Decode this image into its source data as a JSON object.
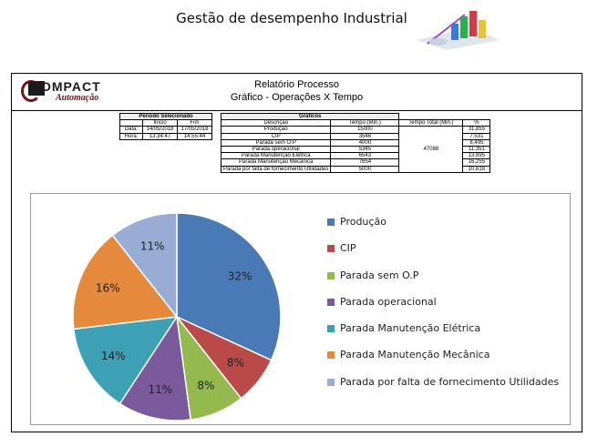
{
  "slide_title": "Gestão de desempenho Industrial",
  "logo": {
    "word": "OMPACT",
    "sub": "Automação"
  },
  "report": {
    "title": "Relatório Processo",
    "subtitle": "Gráfico - Operações X Tempo"
  },
  "period_table": {
    "header": "Período Selecionado",
    "cols": [
      "",
      "Início",
      "Fim"
    ],
    "rows": [
      [
        "Data:",
        "14/05/2018",
        "17/05/2018"
      ],
      [
        "Hora:",
        "13:34:47",
        "14:55:44"
      ]
    ]
  },
  "graph_table": {
    "header": "Gráficos",
    "cols": [
      "Descrição",
      "Tempo (Min.)",
      "Tempo Total (Min.)",
      "%"
    ],
    "total": "47088",
    "rows": [
      [
        "Produção",
        "15000",
        "31,855"
      ],
      [
        "CIP",
        "3546",
        "7,531"
      ],
      [
        "Parada sem O.P",
        "4000",
        "8,495"
      ],
      [
        "Parada operacional",
        "5345",
        "11,351"
      ],
      [
        "Parada Manutenção Elétrica",
        "6543",
        "13,895"
      ],
      [
        "Parada Manutenção Mecânica",
        "7654",
        "16,255"
      ],
      [
        "Parada por falta de fornecimento Utilidades",
        "5000",
        "10,618"
      ]
    ]
  },
  "chart_data": {
    "type": "pie",
    "title": "",
    "categories": [
      "Produção",
      "CIP",
      "Parada sem O.P",
      "Parada operacional",
      "Parada Manutenção Elétrica",
      "Parada Manutenção Mecânica",
      "Parada por falta de fornecimento Utilidades"
    ],
    "values": [
      15000,
      3546,
      4000,
      5345,
      6543,
      7654,
      5000
    ],
    "labels": [
      "32%",
      "8%",
      "8%",
      "11%",
      "14%",
      "16%",
      "11%"
    ],
    "colors": [
      "#4a7ab5",
      "#b94a48",
      "#94b94f",
      "#7a5a9a",
      "#3ea0b5",
      "#e58a3c",
      "#98acd4"
    ],
    "legend_position": "right"
  }
}
